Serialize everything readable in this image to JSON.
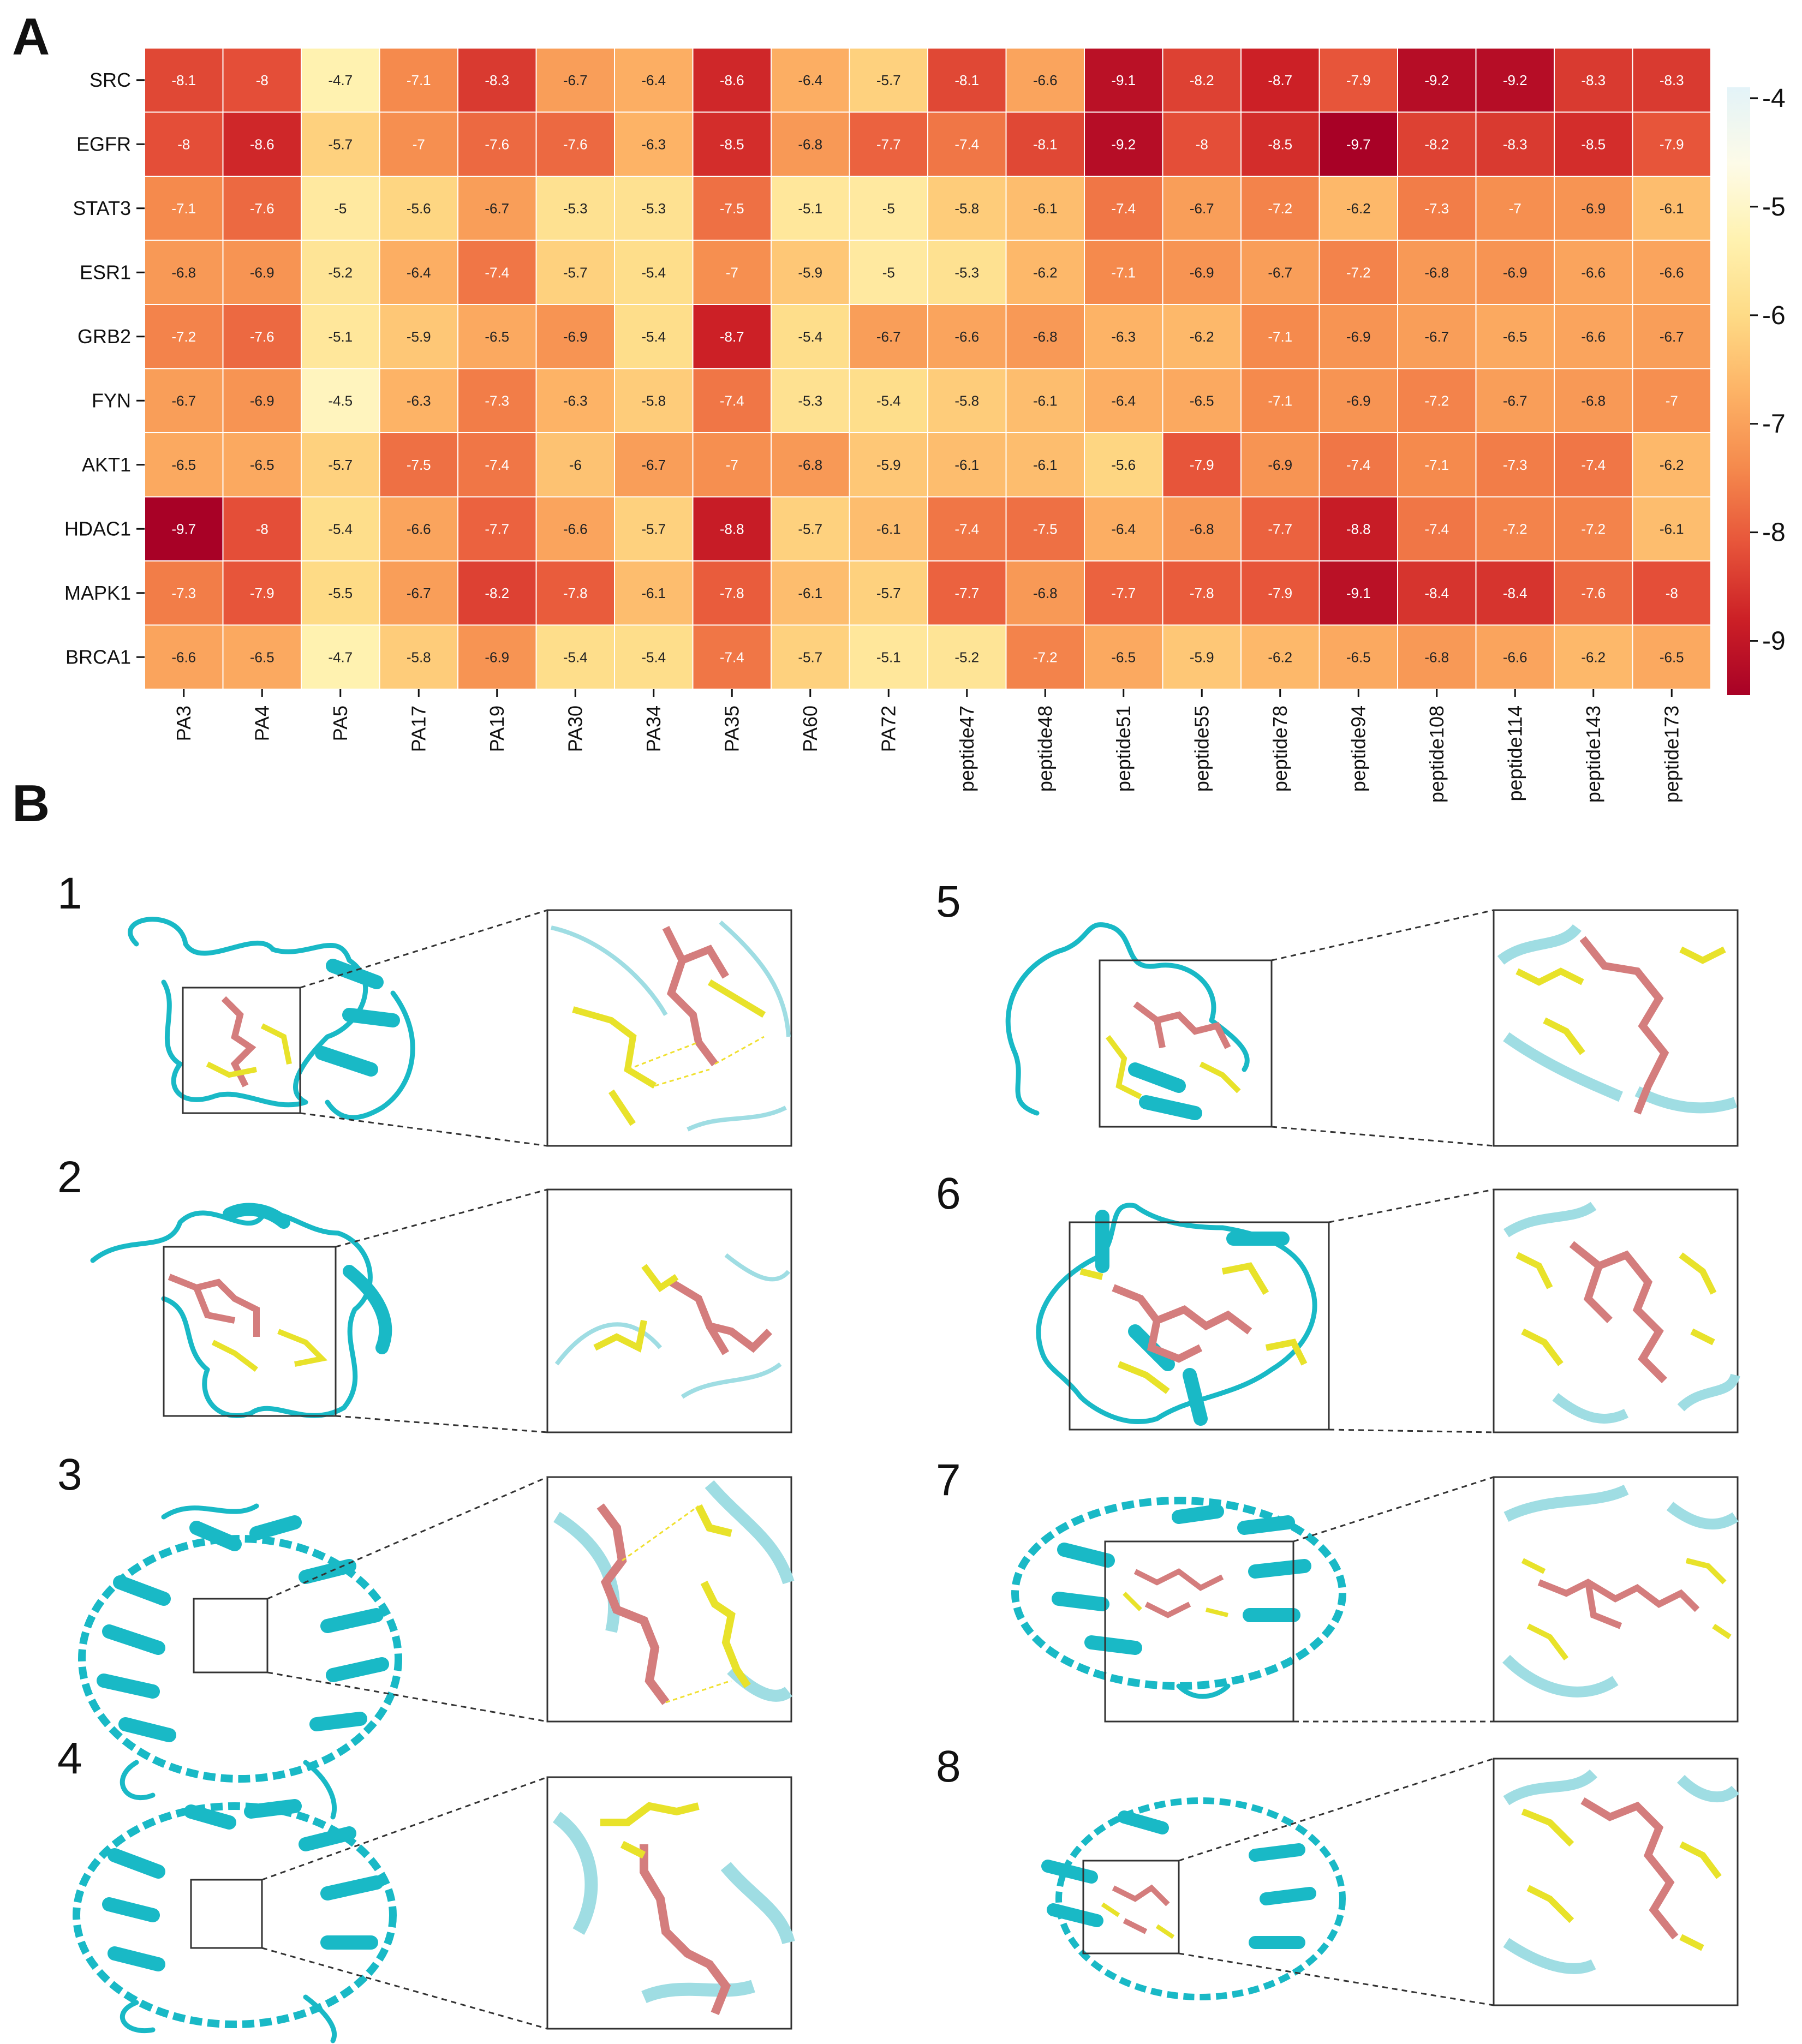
{
  "panels": {
    "a": "A",
    "b": "B"
  },
  "chart_data": {
    "type": "heatmap",
    "title": "",
    "rows": [
      "SRC",
      "EGFR",
      "STAT3",
      "ESR1",
      "GRB2",
      "FYN",
      "AKT1",
      "HDAC1",
      "MAPK1",
      "BRCA1"
    ],
    "columns": [
      "PA3",
      "PA4",
      "PA5",
      "PA17",
      "PA19",
      "PA30",
      "PA34",
      "PA35",
      "PA60",
      "PA72",
      "peptide47",
      "peptide48",
      "peptide51",
      "peptide55",
      "peptide78",
      "peptide94",
      "peptide108",
      "peptide114",
      "peptide143",
      "peptide173"
    ],
    "values": [
      [
        -8.1,
        -8,
        -4.7,
        -7.1,
        -8.3,
        -6.7,
        -6.4,
        -8.6,
        -6.4,
        -5.7,
        -8.1,
        -6.6,
        -9.1,
        -8.2,
        -8.7,
        -7.9,
        -9.2,
        -9.2,
        -8.3,
        -8.3
      ],
      [
        -8,
        -8.6,
        -5.7,
        -7,
        -7.6,
        -7.6,
        -6.3,
        -8.5,
        -6.8,
        -7.7,
        -7.4,
        -8.1,
        -9.2,
        -8,
        -8.5,
        -9.7,
        -8.2,
        -8.3,
        -8.5,
        -7.9
      ],
      [
        -7.1,
        -7.6,
        -5,
        -5.6,
        -6.7,
        -5.3,
        -5.3,
        -7.5,
        -5.1,
        -5,
        -5.8,
        -6.1,
        -7.4,
        -6.7,
        -7.2,
        -6.2,
        -7.3,
        -7,
        -6.9,
        -6.1
      ],
      [
        -6.8,
        -6.9,
        -5.2,
        -6.4,
        -7.4,
        -5.7,
        -5.4,
        -7,
        -5.9,
        -5,
        -5.3,
        -6.2,
        -7.1,
        -6.9,
        -6.7,
        -7.2,
        -6.8,
        -6.9,
        -6.6,
        -6.6
      ],
      [
        -7.2,
        -7.6,
        -5.1,
        -5.9,
        -6.5,
        -6.9,
        -5.4,
        -8.7,
        -5.4,
        -6.7,
        -6.6,
        -6.8,
        -6.3,
        -6.2,
        -7.1,
        -6.9,
        -6.7,
        -6.5,
        -6.6,
        -6.7
      ],
      [
        -6.7,
        -6.9,
        -4.5,
        -6.3,
        -7.3,
        -6.3,
        -5.8,
        -7.4,
        -5.3,
        -5.4,
        -5.8,
        -6.1,
        -6.4,
        -6.5,
        -7.1,
        -6.9,
        -7.2,
        -6.7,
        -6.8,
        -7
      ],
      [
        -6.5,
        -6.5,
        -5.7,
        -7.5,
        -7.4,
        -6,
        -6.7,
        -7,
        -6.8,
        -5.9,
        -6.1,
        -6.1,
        -5.6,
        -7.9,
        -6.9,
        -7.4,
        -7.1,
        -7.3,
        -7.4,
        -6.2
      ],
      [
        -9.7,
        -8,
        -5.4,
        -6.6,
        -7.7,
        -6.6,
        -5.7,
        -8.8,
        -5.7,
        -6.1,
        -7.4,
        -7.5,
        -6.4,
        -6.8,
        -7.7,
        -8.8,
        -7.4,
        -7.2,
        -7.2,
        -6.1
      ],
      [
        -7.3,
        -7.9,
        -5.5,
        -6.7,
        -8.2,
        -7.8,
        -6.1,
        -7.8,
        -6.1,
        -5.7,
        -7.7,
        -6.8,
        -7.7,
        -7.8,
        -7.9,
        -9.1,
        -8.4,
        -8.4,
        -7.6,
        -8
      ],
      [
        -6.6,
        -6.5,
        -4.7,
        -5.8,
        -6.9,
        -5.4,
        -5.4,
        -7.4,
        -5.7,
        -5.1,
        -5.2,
        -7.2,
        -6.5,
        -5.9,
        -6.2,
        -6.5,
        -6.8,
        -6.6,
        -6.2,
        -6.5
      ]
    ],
    "vmin": -9.5,
    "vmax": -3.9,
    "colorbar_ticks": [
      "-4",
      "-5",
      "-6",
      "-7",
      "-8",
      "-9"
    ],
    "colormap": "YlOrRd (reversed)",
    "colormap_stops": [
      "#fdfbe8",
      "#fff2b0",
      "#fedb86",
      "#fdb366",
      "#f58a4d",
      "#e7553a",
      "#cc2026",
      "#a80126"
    ],
    "colorbar_top_color": "#e3f3f8"
  },
  "docking_panels": [
    {
      "number": "1"
    },
    {
      "number": "2"
    },
    {
      "number": "3"
    },
    {
      "number": "4"
    },
    {
      "number": "5"
    },
    {
      "number": "6"
    },
    {
      "number": "7"
    },
    {
      "number": "8"
    }
  ],
  "colors": {
    "protein": "#19b9c6",
    "ligand": "#d47d7d",
    "residue": "#e8e22a",
    "hbond": "#f0e030"
  }
}
